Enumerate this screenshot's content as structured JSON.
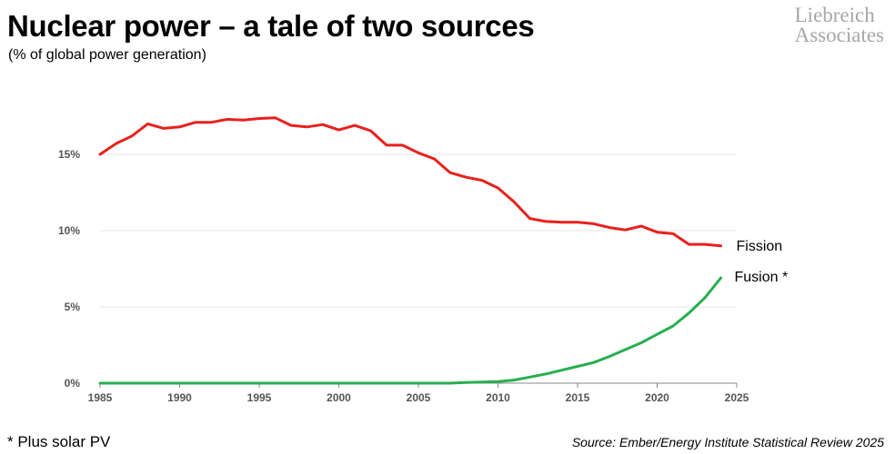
{
  "header": {
    "title": "Nuclear power – a tale of two sources",
    "subtitle": "(% of global power generation)"
  },
  "brand": {
    "line1": "Liebreich",
    "line2": "Associates"
  },
  "footer": {
    "footnote": "* Plus solar PV",
    "source": "Source: Ember/Energy Institute Statistical Review 2025"
  },
  "chart_data": {
    "type": "line",
    "title": "Nuclear power – a tale of two sources",
    "subtitle": "(% of global power generation)",
    "xlabel": "",
    "ylabel": "",
    "xlim": [
      1985,
      2025
    ],
    "ylim": [
      0,
      20
    ],
    "x_ticks": [
      1985,
      1990,
      1995,
      2000,
      2005,
      2010,
      2015,
      2020,
      2025
    ],
    "x_tick_labels": [
      "1985",
      "1990",
      "1995",
      "2000",
      "2005",
      "2010",
      "2015",
      "2020",
      "2025"
    ],
    "y_ticks": [
      0,
      5,
      10,
      15
    ],
    "y_tick_labels": [
      "0%",
      "5%",
      "10%",
      "15%"
    ],
    "grid": "horizontal",
    "colors": {
      "fission": "#e8201c",
      "fusion": "#27ae4f",
      "grid": "#e4e4e4",
      "axis": "#888888"
    },
    "x": [
      1985,
      1986,
      1987,
      1988,
      1989,
      1990,
      1991,
      1992,
      1993,
      1994,
      1995,
      1996,
      1997,
      1998,
      1999,
      2000,
      2001,
      2002,
      2003,
      2004,
      2005,
      2006,
      2007,
      2008,
      2009,
      2010,
      2011,
      2012,
      2013,
      2014,
      2015,
      2016,
      2017,
      2018,
      2019,
      2020,
      2021,
      2022,
      2023,
      2024
    ],
    "series": [
      {
        "name": "Fission",
        "label": "Fission",
        "values": [
          15.0,
          15.7,
          16.2,
          17.0,
          16.7,
          16.8,
          17.1,
          17.1,
          17.3,
          17.25,
          17.35,
          17.4,
          16.9,
          16.8,
          16.95,
          16.6,
          16.9,
          16.55,
          15.6,
          15.6,
          15.1,
          14.7,
          13.8,
          13.5,
          13.3,
          12.8,
          11.9,
          10.8,
          10.6,
          10.55,
          10.55,
          10.45,
          10.2,
          10.05,
          10.3,
          9.9,
          9.8,
          9.1,
          9.1,
          9.0
        ]
      },
      {
        "name": "Fusion *",
        "label": "Fusion *",
        "values": [
          0,
          0,
          0,
          0,
          0,
          0,
          0,
          0,
          0,
          0,
          0,
          0,
          0,
          0,
          0,
          0,
          0,
          0,
          0,
          0,
          0,
          0,
          0,
          0.05,
          0.07,
          0.1,
          0.2,
          0.4,
          0.6,
          0.85,
          1.1,
          1.35,
          1.75,
          2.2,
          2.65,
          3.2,
          3.75,
          4.6,
          5.6,
          6.9
        ]
      }
    ]
  }
}
